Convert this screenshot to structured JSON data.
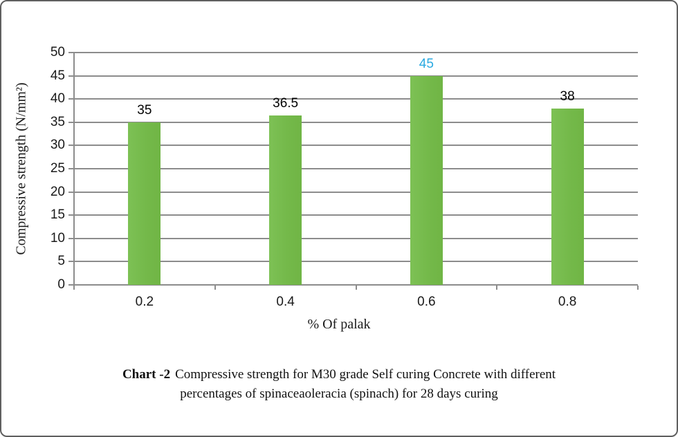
{
  "figure": {
    "caption_prefix": "Chart -2",
    "caption_line1_rest": "Compressive strength for M30 grade Self curing Concrete with different",
    "caption_line2": "percentages of spinaceaoleracia (spinach) for 28 days curing"
  },
  "chart_data": {
    "type": "bar",
    "categories": [
      "0.2",
      "0.4",
      "0.6",
      "0.8"
    ],
    "values": [
      35,
      36.5,
      45,
      38
    ],
    "data_labels": [
      "35",
      "36.5",
      "45",
      "38"
    ],
    "data_label_colors": [
      "#000000",
      "#000000",
      "#29a9e1",
      "#000000"
    ],
    "title": "",
    "xlabel": "% Of palak",
    "ylabel": "Compressive strength (N/mm²)",
    "ylim": [
      0,
      50
    ],
    "yticks": [
      0,
      5,
      10,
      15,
      20,
      25,
      30,
      35,
      40,
      45,
      50
    ],
    "grid": true,
    "legend": "none",
    "bar_color": "#76ba4d",
    "gridline_color": "#8c8c8c",
    "axis_color": "#8c8c8c"
  }
}
